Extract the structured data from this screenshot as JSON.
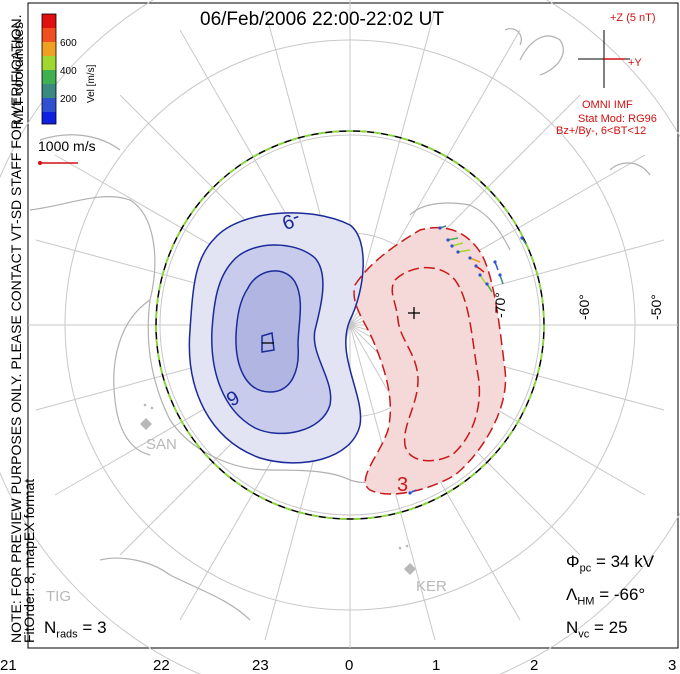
{
  "title": "06/Feb/2006 22:00-22:02 UT",
  "watermark": {
    "line1": "NOTE: FOR PREVIEW PURPOSES ONLY. PLEASE CONTACT VT-SD STAFF FOR VERIFICATION.",
    "line2": "FitOrder: 8, mapEX format",
    "coord": "MLT coordinates"
  },
  "colorbar": {
    "unit_label": "Vel [m/s]",
    "ticks": [
      "600",
      "400",
      "200"
    ],
    "colors": [
      "#e01010",
      "#f05020",
      "#f0a020",
      "#a0d830",
      "#40b050",
      "#3a8a80",
      "#3050d0",
      "#1020e0"
    ]
  },
  "scale_vector": "1000 m/s",
  "imf": {
    "z_label": "+Z (5 nT)",
    "y_label": "+Y",
    "name": "OMNI IMF",
    "model": "Stat Mod: RG96",
    "condition": "Bz+/By-, 6<BT<12"
  },
  "stats": {
    "phi_pc": {
      "symbol": "Φ",
      "sub": "pc",
      "value": "= 34 kV"
    },
    "lambda_hm": {
      "symbol": "Λ",
      "sub": "HM",
      "value": "= -66°"
    },
    "n_vc": {
      "symbol": "N",
      "sub": "vc",
      "value": "= 25"
    },
    "n_rads": {
      "symbol": "N",
      "sub": "rads",
      "value": "= 3"
    }
  },
  "latitude_labels": [
    "-50°",
    "-60°",
    "-70°"
  ],
  "mlt_labels": [
    "21",
    "22",
    "23",
    "0",
    "1",
    "2",
    "3"
  ],
  "stations": [
    "SAN",
    "KER",
    "TIG"
  ],
  "contours": {
    "negative_label": "-9",
    "negative_label2": "9",
    "positive_label": "3",
    "negative_color": "#1a2a9a",
    "positive_color": "#c81818"
  }
}
